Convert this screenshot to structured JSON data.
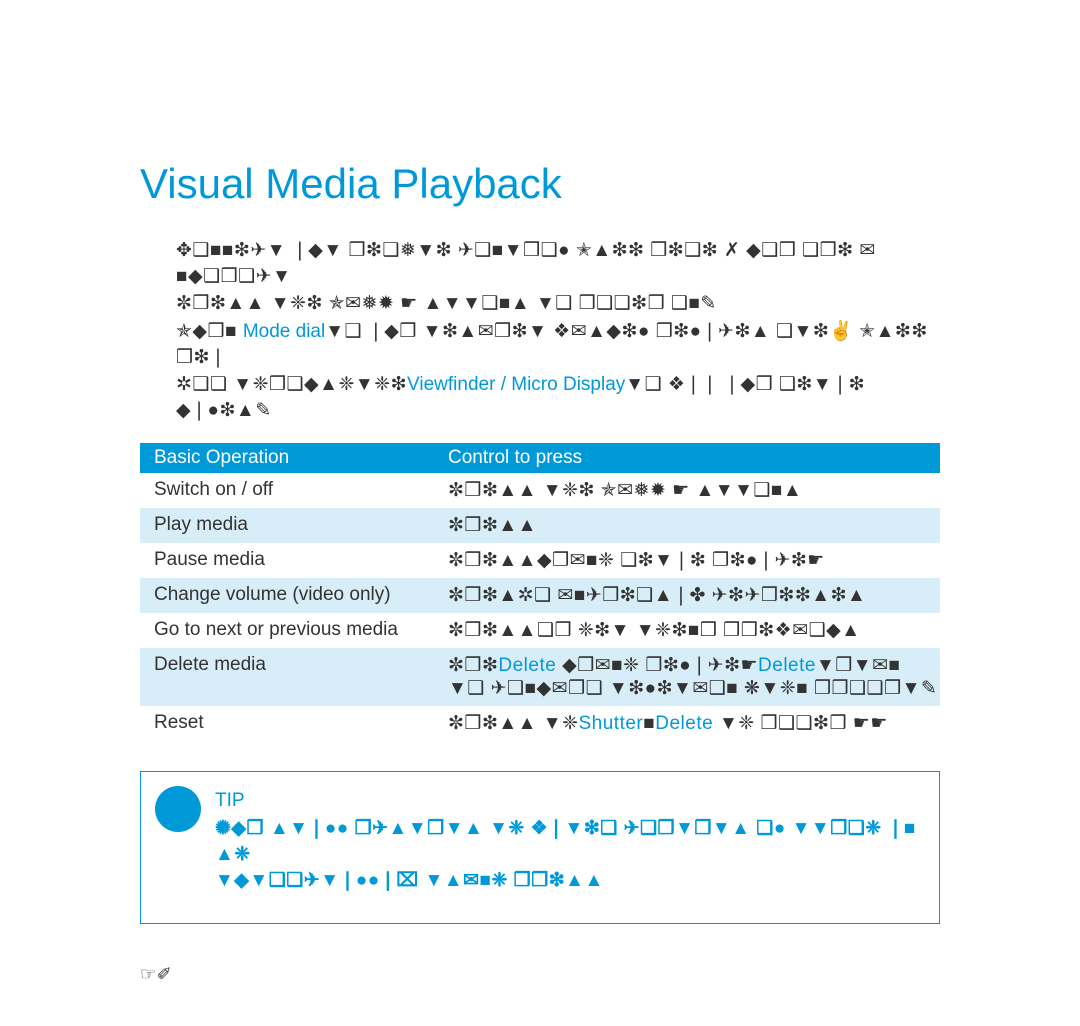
{
  "title": "Visual Media Playback",
  "intro": {
    "line1": "✥❑■■❇✈▼ ❘◆▼ ❒❇❑❅▼❇ ✈❑■▼❒❑● ✭▲❇❇ ❒❇❑❇ ✗ ◆❑❒ ❑❒❇ ✉■◆❑❒❑✈▼",
    "line2": "✼❒❇▲▲ ▼❈❇ ✯✉❅✹ ☛ ▲▼▼❑■▲ ▼❑ ❒❑❏❇❒ ❑■✎",
    "line3_pre": "✯◆❒■ ",
    "line3_link": "Mode dial",
    "line3_post": "▼❑ ❘◆❒ ▼❇▲✉❒❇▼ ❖✉▲◆❇● ❒❇●❘✈❇▲ ❑▼❇✌ ✭▲❇❇ ❒❇❘",
    "line4_pre": "✲❑❏ ▼❈❒❑◆▲❈▼❈❇",
    "line4_link": "Viewfinder / Micro Display",
    "line4_post": "▼❑ ❖❘❘ ❘◆❒ ❑❇▼❘❇ ◆❘●❇▲✎"
  },
  "table": {
    "header": {
      "col1": "Basic Operation",
      "col2": "Control to press"
    },
    "rows": [
      {
        "striped": false,
        "col1": "Switch on / off",
        "col2": "✼❒❇▲▲ ▼❈❇ ✯✉❅✹ ☛ ▲▼▼❑■▲",
        "links": []
      },
      {
        "striped": true,
        "col1": "Play media",
        "col2": "✼❒❇▲▲",
        "links": []
      },
      {
        "striped": false,
        "col1": "Pause media",
        "col2": "✼❒❇▲▲◆❒✉■❈ ❑❇▼❘❇ ❒❇●❘✈❇☛",
        "links": []
      },
      {
        "striped": true,
        "col1": "Change volume (video only)",
        "col2": "✼❒❇▲✲❑ ✉■✈❒❇❑▲❘✤ ✈❇✈❒❇❇▲❇▲",
        "links": []
      },
      {
        "striped": false,
        "col1": "Go to next or previous media",
        "col2": "✼❒❇▲▲❑❒ ❈❇▼ ▼❈❇■❒ ❒❒❇❖✉❑◆▲",
        "links": []
      },
      {
        "striped": true,
        "col1": "Delete media",
        "col2_parts": [
          "✼❒❇",
          "Delete",
          " ◆❒✉■❈ ❒❇●❘✈❇☛",
          "Delete",
          "▼❒▼✉■ ▼❑ ✈❑■◆✉❒❑ ▼❇●❇▼✉❑■ ❋▼❈■ ❒❒❑❑❒▼✎"
        ],
        "links": [
          1,
          3
        ]
      },
      {
        "striped": false,
        "col1": "Reset",
        "col2_parts": [
          "✼❒❇▲▲ ▼❈",
          "Shutter",
          "■",
          "Delete",
          " ▼❈ ❒❑❏❇❒ ☛☛"
        ],
        "links": [
          1,
          3
        ]
      }
    ]
  },
  "tip": {
    "label": "TIP",
    "line1": "✺◆❒ ▲▼❘●● ❒✈▲▼❒▼▲ ▼❈ ❖❘▼❇❑ ✈❑❒▼❒▼▲ ❏● ▼▼❒❑❈ ❘■ ▲❈",
    "line2": "▼◆▼❑❑✈▼❘●●❘⌧ ▼▲✉■❈ ❒❒❇▲▲"
  },
  "page_number": "☞✐",
  "colors": {
    "accent": "#0099d8",
    "row_stripe": "#d7edf7",
    "text": "#333333",
    "bg": "#ffffff"
  }
}
